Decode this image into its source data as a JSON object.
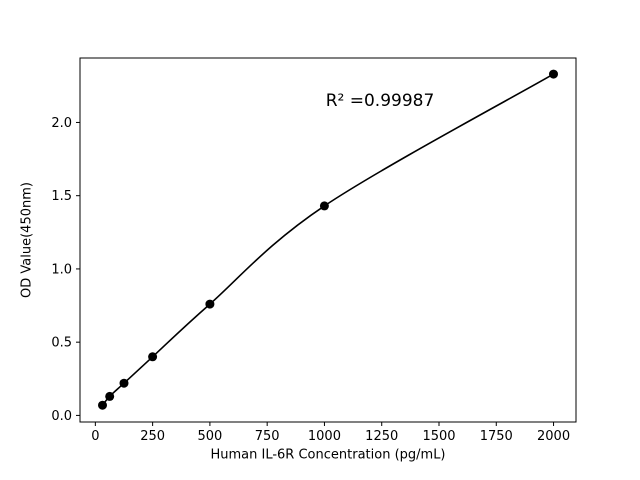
{
  "chart_data": {
    "type": "line",
    "title": "",
    "xlabel": "Human IL-6R Concentration (pg/mL)",
    "ylabel": "OD Value(450nm)",
    "x": [
      31.25,
      62.5,
      125,
      250,
      500,
      1000,
      2000
    ],
    "y": [
      0.07,
      0.13,
      0.22,
      0.4,
      0.76,
      1.43,
      2.33
    ],
    "xlim": [
      -67,
      2098
    ],
    "ylim": [
      -0.045,
      2.44
    ],
    "xticks": [
      0,
      250,
      500,
      750,
      1000,
      1250,
      1500,
      1750,
      2000
    ],
    "xtick_labels": [
      "0",
      "250",
      "500",
      "750",
      "1000",
      "1250",
      "1500",
      "1750",
      "2000"
    ],
    "yticks": [
      0.0,
      0.5,
      1.0,
      1.5,
      2.0
    ],
    "ytick_labels": [
      "0.0",
      "0.5",
      "1.0",
      "1.5",
      "2.0"
    ],
    "annotations": [
      {
        "text": "R² =0.99987",
        "x": 1245,
        "y": 2.15
      }
    ],
    "line_color": "#000000",
    "marker_color": "#000000",
    "background_color": "#ffffff",
    "grid": false,
    "legend": null
  }
}
